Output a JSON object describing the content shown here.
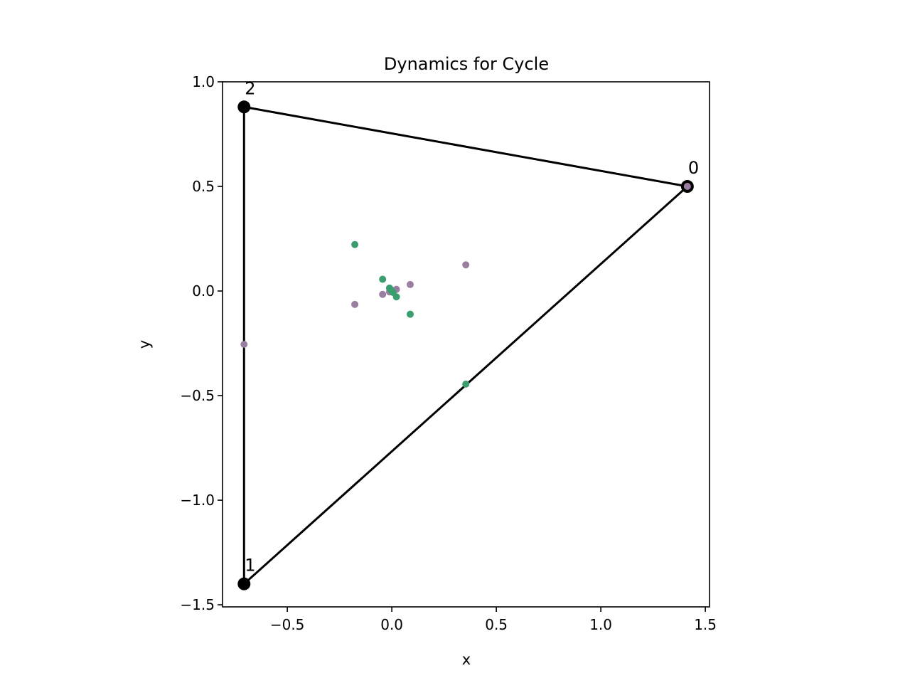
{
  "chart_data": {
    "type": "scatter",
    "title": "Dynamics for Cycle",
    "xlabel": "x",
    "ylabel": "y",
    "xlim": [
      -0.81,
      1.52
    ],
    "ylim": [
      -1.51,
      1.0
    ],
    "xticks": [
      -0.5,
      0.0,
      0.5,
      1.0,
      1.5
    ],
    "xtick_labels": [
      "−0.5",
      "0.0",
      "0.5",
      "1.0",
      "1.5"
    ],
    "yticks": [
      1.0,
      0.5,
      0.0,
      -0.5,
      -1.0,
      -1.5
    ],
    "ytick_labels": [
      "1.0",
      "0.5",
      "0.0",
      "−0.5",
      "−1.0",
      "−1.5"
    ],
    "grid": false,
    "nodes": [
      {
        "label": "0",
        "x": 1.414,
        "y": 0.5
      },
      {
        "label": "1",
        "x": -0.707,
        "y": -1.4
      },
      {
        "label": "2",
        "x": -0.707,
        "y": 0.88
      }
    ],
    "edges": [
      [
        2,
        0
      ],
      [
        0,
        1
      ],
      [
        1,
        2
      ]
    ],
    "series": [
      {
        "color": "#9b7fa3",
        "points": [
          {
            "x": 1.414,
            "y": 0.5
          },
          {
            "x": -0.707,
            "y": -0.255
          },
          {
            "x": 0.354,
            "y": 0.125
          },
          {
            "x": -0.177,
            "y": -0.064
          },
          {
            "x": 0.088,
            "y": 0.031
          },
          {
            "x": -0.044,
            "y": -0.016
          },
          {
            "x": 0.022,
            "y": 0.008
          },
          {
            "x": -0.011,
            "y": -0.004
          },
          {
            "x": 0.006,
            "y": 0.002
          }
        ]
      },
      {
        "color": "#3a9e6e",
        "points": [
          {
            "x": 0.354,
            "y": -0.445
          },
          {
            "x": -0.177,
            "y": 0.222
          },
          {
            "x": 0.088,
            "y": -0.111
          },
          {
            "x": -0.044,
            "y": 0.056
          },
          {
            "x": 0.022,
            "y": -0.028
          },
          {
            "x": -0.011,
            "y": 0.014
          },
          {
            "x": 0.006,
            "y": -0.007
          },
          {
            "x": -0.003,
            "y": 0.003
          }
        ]
      }
    ],
    "edge_color": "#000000",
    "node_color": "#000000"
  }
}
